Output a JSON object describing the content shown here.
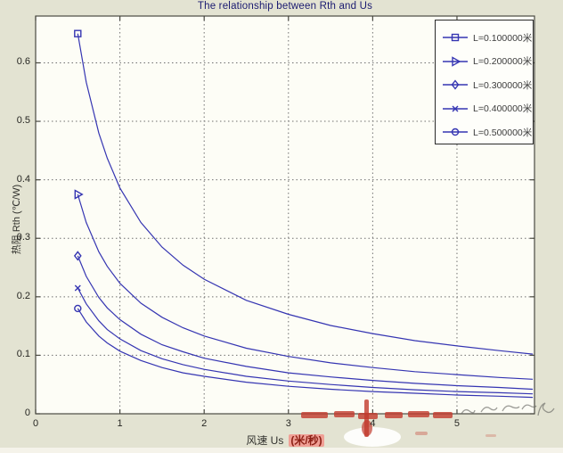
{
  "title": "The relationship between Rth and Us",
  "axes": {
    "x_label": "风速  Us",
    "x_unit": "(米/秒)",
    "y_label": "热阻  Rth (℃/W)",
    "x_tick_labels": [
      "0",
      "1",
      "2",
      "3",
      "4",
      "5"
    ],
    "y_tick_labels": [
      "0",
      "0.1",
      "0.2",
      "0.3",
      "0.4",
      "0.5",
      "0.6"
    ]
  },
  "legend": {
    "position": "top-right",
    "entries": [
      "L=0.100000米",
      "L=0.200000米",
      "L=0.300000米",
      "L=0.400000米",
      "L=0.500000米"
    ]
  },
  "chart_data": {
    "type": "line",
    "title": "The relationship between Rth and Us",
    "xlabel": "风速 Us (米/秒)",
    "ylabel": "热阻 Rth (℃/W)",
    "xlim": [
      0,
      5.92
    ],
    "ylim": [
      0,
      0.68
    ],
    "x_ticks": [
      0,
      1,
      2,
      3,
      4,
      5
    ],
    "y_ticks": [
      0,
      0.1,
      0.2,
      0.3,
      0.4,
      0.5,
      0.6
    ],
    "grid": true,
    "legend_position": "top-right",
    "x": [
      0.5,
      0.6,
      0.75,
      0.85,
      1,
      1.25,
      1.5,
      1.75,
      2,
      2.5,
      3,
      3.5,
      4,
      4.5,
      5,
      5.5,
      5.9
    ],
    "series": [
      {
        "label": "L=0.100000米",
        "marker": "square",
        "values": [
          0.65,
          0.567,
          0.48,
          0.437,
          0.386,
          0.327,
          0.285,
          0.254,
          0.23,
          0.194,
          0.17,
          0.151,
          0.137,
          0.125,
          0.116,
          0.108,
          0.102
        ]
      },
      {
        "label": "L=0.200000米",
        "marker": "triangle-right",
        "values": [
          0.375,
          0.327,
          0.277,
          0.252,
          0.223,
          0.189,
          0.165,
          0.147,
          0.133,
          0.112,
          0.098,
          0.087,
          0.079,
          0.072,
          0.067,
          0.062,
          0.059
        ]
      },
      {
        "label": "L=0.300000米",
        "marker": "diamond",
        "values": [
          0.27,
          0.235,
          0.199,
          0.181,
          0.161,
          0.136,
          0.118,
          0.106,
          0.095,
          0.081,
          0.07,
          0.063,
          0.057,
          0.052,
          0.048,
          0.045,
          0.042
        ]
      },
      {
        "label": "L=0.400000米",
        "marker": "x",
        "values": [
          0.215,
          0.188,
          0.159,
          0.144,
          0.128,
          0.108,
          0.094,
          0.084,
          0.076,
          0.064,
          0.056,
          0.05,
          0.045,
          0.041,
          0.038,
          0.036,
          0.034
        ]
      },
      {
        "label": "L=0.500000米",
        "marker": "circle",
        "values": [
          0.18,
          0.157,
          0.133,
          0.121,
          0.107,
          0.091,
          0.079,
          0.07,
          0.064,
          0.054,
          0.047,
          0.042,
          0.038,
          0.035,
          0.032,
          0.03,
          0.028
        ]
      }
    ]
  },
  "colors": {
    "figure_background": "#e3e3d2",
    "plot_background": "#fdfdf6",
    "curve": "#3535b2",
    "grid": "#707070",
    "title_text": "#1a1a70",
    "tick_text": "#262622",
    "unit_highlight_bg": "#f0a096",
    "unit_highlight_text": "#8c2015",
    "watermark_red": "#c23a2d",
    "watermark_gray": "#6a6a66"
  }
}
